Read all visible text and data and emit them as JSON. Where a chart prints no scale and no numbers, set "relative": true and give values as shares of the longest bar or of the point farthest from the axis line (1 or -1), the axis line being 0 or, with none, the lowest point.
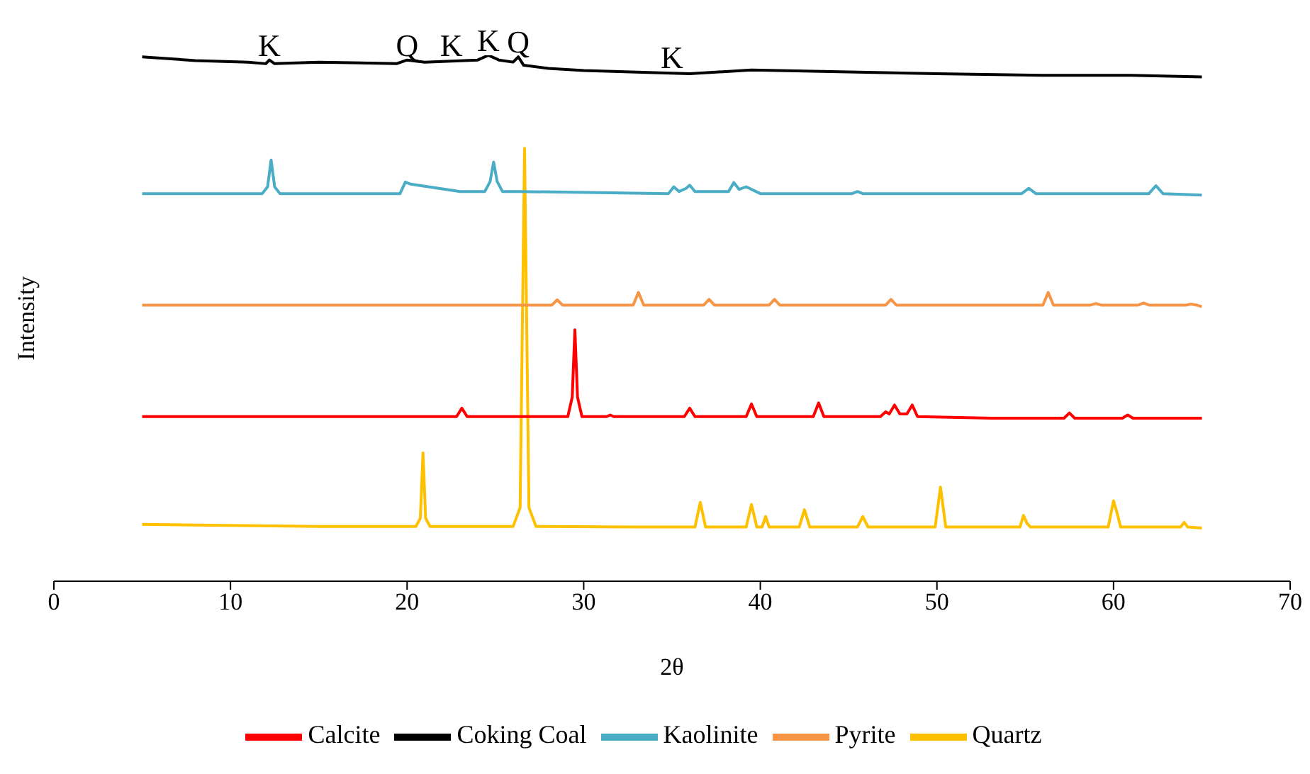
{
  "chart_data": {
    "type": "line",
    "relative": true,
    "xlabel": "2θ",
    "ylabel": "Intensity",
    "xlim": [
      0,
      70
    ],
    "xticks": [
      0,
      10,
      20,
      30,
      40,
      50,
      60,
      70
    ],
    "grid": false,
    "legend": "bottom",
    "marker": "none",
    "line_style": "solid",
    "annotations": [
      {
        "text": "K",
        "x": 12.2,
        "y": 0.991
      },
      {
        "text": "Q",
        "x": 20,
        "y": 0.991
      },
      {
        "text": "K",
        "x": 22.5,
        "y": 0.991
      },
      {
        "text": "K",
        "x": 24.6,
        "y": 1
      },
      {
        "text": "Q",
        "x": 26.3,
        "y": 0.997
      },
      {
        "text": "K",
        "x": 35,
        "y": 0.968
      }
    ],
    "series": [
      {
        "name": "Coking Coal",
        "color": "#000000",
        "x": [
          5,
          8,
          11,
          12,
          12.2,
          12.5,
          15,
          19.4,
          20,
          21,
          24,
          24.6,
          25.2,
          26,
          26.3,
          26.6,
          28,
          30,
          33,
          36,
          39.5,
          45.5,
          50,
          56,
          61,
          65
        ],
        "values": [
          0.997,
          0.99,
          0.987,
          0.984,
          0.991,
          0.984,
          0.987,
          0.984,
          0.991,
          0.987,
          0.991,
          1,
          0.991,
          0.987,
          0.997,
          0.981,
          0.975,
          0.971,
          0.968,
          0.965,
          0.972,
          0.968,
          0.965,
          0.962,
          0.962,
          0.959
        ]
      },
      {
        "name": "Quartz",
        "color": "#ffc000",
        "x": [
          5,
          15,
          20.5,
          20.75,
          20.9,
          21.05,
          21.3,
          26,
          26.4,
          26.65,
          26.9,
          27.3,
          33,
          36.3,
          36.6,
          36.9,
          39.2,
          39.5,
          39.8,
          40.1,
          40.3,
          40.5,
          42.2,
          42.5,
          42.8,
          45.5,
          45.8,
          46.1,
          49.9,
          50.2,
          50.5,
          54.7,
          54.9,
          55.1,
          55.3,
          59.7,
          60,
          60.2,
          60.4,
          63.8,
          64,
          64.2,
          65
        ],
        "values": [
          0.108,
          0.104,
          0.104,
          0.12,
          0.244,
          0.12,
          0.104,
          0.104,
          0.14,
          0.823,
          0.14,
          0.104,
          0.103,
          0.103,
          0.15,
          0.103,
          0.103,
          0.146,
          0.103,
          0.103,
          0.123,
          0.103,
          0.103,
          0.136,
          0.103,
          0.103,
          0.123,
          0.103,
          0.103,
          0.179,
          0.103,
          0.103,
          0.125,
          0.11,
          0.103,
          0.103,
          0.153,
          0.13,
          0.103,
          0.103,
          0.112,
          0.103,
          0.101
        ]
      },
      {
        "name": "Kaolinite",
        "color": "#4bacc6",
        "x": [
          5,
          11.8,
          12.1,
          12.3,
          12.5,
          12.8,
          19.6,
          19.9,
          20.2,
          23,
          24.4,
          24.7,
          24.9,
          25.1,
          25.4,
          26.3,
          34.8,
          35.1,
          35.4,
          35.8,
          36,
          36.3,
          38.2,
          38.5,
          38.8,
          39.2,
          40,
          45.2,
          45.5,
          45.8,
          54.8,
          55.2,
          55.6,
          62,
          62.4,
          62.8,
          65
        ],
        "values": [
          0.737,
          0.737,
          0.75,
          0.801,
          0.75,
          0.737,
          0.737,
          0.759,
          0.755,
          0.741,
          0.741,
          0.76,
          0.797,
          0.76,
          0.741,
          0.741,
          0.737,
          0.75,
          0.741,
          0.747,
          0.753,
          0.741,
          0.741,
          0.758,
          0.745,
          0.75,
          0.737,
          0.737,
          0.741,
          0.737,
          0.737,
          0.747,
          0.737,
          0.737,
          0.752,
          0.737,
          0.734
        ]
      },
      {
        "name": "Pyrite",
        "color": "#f79646",
        "x": [
          5,
          28.2,
          28.5,
          28.8,
          32.8,
          33.1,
          33.4,
          36.8,
          37.1,
          37.4,
          40.5,
          40.8,
          41.1,
          47.1,
          47.4,
          47.7,
          56,
          56.3,
          56.6,
          58.7,
          59,
          59.3,
          61.4,
          61.7,
          62,
          64.1,
          64.4,
          64.7,
          65
        ],
        "values": [
          0.525,
          0.525,
          0.535,
          0.525,
          0.525,
          0.549,
          0.525,
          0.525,
          0.536,
          0.525,
          0.525,
          0.536,
          0.525,
          0.525,
          0.536,
          0.525,
          0.525,
          0.549,
          0.525,
          0.525,
          0.528,
          0.525,
          0.525,
          0.529,
          0.525,
          0.525,
          0.527,
          0.525,
          0.522
        ]
      },
      {
        "name": "Calcite",
        "color": "#ff0000",
        "x": [
          5,
          22.8,
          23.1,
          23.4,
          29.1,
          29.35,
          29.5,
          29.65,
          29.9,
          31.3,
          31.5,
          31.7,
          35.7,
          36,
          36.3,
          39.2,
          39.5,
          39.8,
          43,
          43.3,
          43.6,
          46.8,
          47.1,
          47.3,
          47.6,
          47.9,
          48.3,
          48.6,
          48.9,
          53.1,
          57.2,
          57.5,
          57.8,
          60.5,
          60.8,
          61.1,
          65
        ],
        "values": [
          0.313,
          0.313,
          0.329,
          0.313,
          0.313,
          0.35,
          0.478,
          0.35,
          0.313,
          0.313,
          0.316,
          0.313,
          0.313,
          0.329,
          0.313,
          0.313,
          0.337,
          0.313,
          0.313,
          0.339,
          0.313,
          0.313,
          0.322,
          0.318,
          0.335,
          0.318,
          0.318,
          0.335,
          0.313,
          0.31,
          0.31,
          0.32,
          0.31,
          0.31,
          0.316,
          0.31,
          0.31
        ]
      }
    ]
  }
}
